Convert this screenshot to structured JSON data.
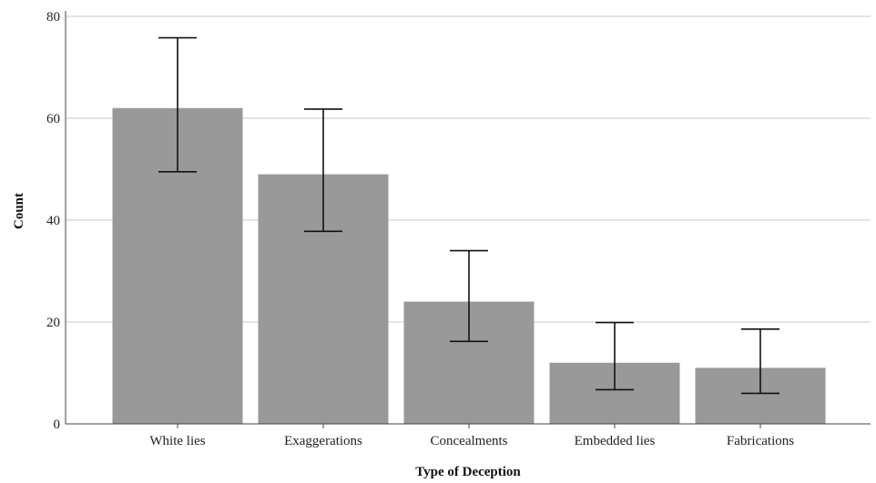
{
  "chart_data": {
    "type": "bar",
    "title": "",
    "xlabel": "Type of Deception",
    "ylabel": "Count",
    "categories": [
      "White lies",
      "Exaggerations",
      "Concealments",
      "Embedded lies",
      "Fabrications"
    ],
    "values": [
      62,
      49,
      24,
      12,
      11
    ],
    "error_bars": [
      {
        "low": 49.5,
        "high": 75.8
      },
      {
        "low": 37.8,
        "high": 61.8
      },
      {
        "low": 16.2,
        "high": 34.0
      },
      {
        "low": 6.7,
        "high": 19.9
      },
      {
        "low": 6.0,
        "high": 18.6
      }
    ],
    "ylim": [
      0,
      80
    ],
    "yticks": [
      0,
      20,
      40,
      60,
      80
    ],
    "grid": true,
    "colors": {
      "bar": "#999999",
      "grid": "#c8c8c8",
      "error": "#111111"
    }
  }
}
